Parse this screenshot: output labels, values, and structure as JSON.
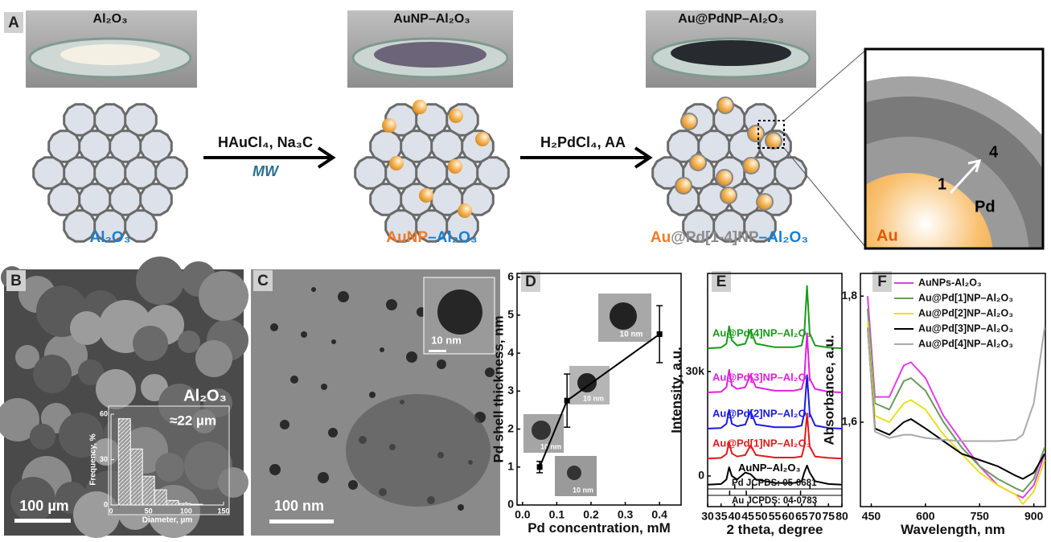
{
  "panel_labels": [
    "A",
    "B",
    "C",
    "D",
    "E",
    "F"
  ],
  "diagram": {
    "photo_titles": [
      "Al₂O₃",
      "AuNP–Al₂O₃",
      "Au@PdNP–Al₂O₃"
    ],
    "support_label": "Al₂O₃",
    "aunp_label": [
      "AuNP",
      "–Al₂O₃"
    ],
    "aupd_label": [
      "Au",
      "@Pd[1-4]NP",
      "–Al₂O₃"
    ],
    "step1": "HAuCl₄, Na₃C",
    "step1_condition": "MW",
    "step2": "H₂PdCl₄, AA",
    "inset": {
      "outer": "4",
      "inner": "1",
      "shell": "Pd",
      "core": "Au"
    }
  },
  "micrographs": {
    "sem_label": "Al₂O₃",
    "sem_size": "≈22 µm",
    "sem_scale": "100 µm",
    "tem_scale": "100 nm",
    "tem_inset_scale": "10 nm",
    "d_inset_scales": [
      "10 nm",
      "10 nm",
      "10 nm",
      "10 nm"
    ]
  },
  "chart_data": [
    {
      "type": "histogram",
      "bins": [
        10,
        26,
        42,
        58,
        74,
        90,
        106,
        122
      ],
      "values": [
        57,
        37,
        19,
        10,
        3,
        1,
        0.5
      ],
      "xlim": [
        0,
        150
      ],
      "ylim": [
        0,
        60
      ],
      "xticks": [
        0,
        50,
        100,
        150
      ],
      "yticks": [
        0,
        30,
        60
      ],
      "xlabel": "Diameter, µm",
      "ylabel": "Frequency, %",
      "color": "#ffffff"
    },
    {
      "type": "scatter",
      "x": [
        0.05,
        0.13,
        0.4
      ],
      "values": [
        1.0,
        2.75,
        4.5
      ],
      "errors": [
        0.15,
        0.7,
        0.75
      ],
      "xlim": [
        -0.016,
        0.463
      ],
      "ylim": [
        0,
        6.1
      ],
      "xticks": [
        {
          "value": 0,
          "label": "0.0"
        },
        0.1,
        0.2,
        0.3,
        0.4
      ],
      "yticks": [
        0,
        1,
        2,
        3,
        4,
        5,
        6
      ],
      "xlabel": "Pd concentration, mM",
      "ylabel": "Pd shell thickness, nm",
      "color": "#000000"
    },
    {
      "type": "line",
      "x": [
        30,
        35,
        37,
        38,
        39,
        41,
        44,
        46,
        48,
        55,
        62,
        65,
        66,
        67,
        68,
        70,
        75,
        80
      ],
      "series": [
        {
          "name": "Au@Pd[4]NP–Al₂O₃",
          "color": "#1a9a1a",
          "values": [
            36700,
            36900,
            38000,
            43000,
            39000,
            37500,
            38000,
            41900,
            38000,
            37000,
            37000,
            37500,
            41000,
            54600,
            41000,
            37500,
            36900,
            36700
          ]
        },
        {
          "name": "Au@Pd[3]NP–Al₂O₃",
          "color": "#e020e0",
          "values": [
            24000,
            24200,
            25500,
            30500,
            26000,
            25000,
            25500,
            29000,
            25500,
            24500,
            24500,
            25000,
            28000,
            41000,
            28000,
            25000,
            24200,
            24000
          ]
        },
        {
          "name": "Au@Pd[2]NP–Al₂O₃",
          "color": "#1a1ae0",
          "values": [
            13600,
            13800,
            15000,
            19000,
            15000,
            14300,
            14800,
            18500,
            14800,
            14000,
            14000,
            14500,
            18000,
            29000,
            18000,
            14500,
            13800,
            13600
          ]
        },
        {
          "name": "Au@Pd[1]NP–Al₂O₃",
          "color": "#e01a1a",
          "values": [
            5000,
            5200,
            6300,
            9700,
            6500,
            5600,
            6000,
            8800,
            6000,
            5300,
            5300,
            5600,
            8500,
            18000,
            8500,
            5600,
            5200,
            5000
          ]
        },
        {
          "name": "AuNP–Al₂O₃",
          "color": "#000000",
          "values": [
            -2500,
            -2300,
            -1000,
            2500,
            0,
            -1000,
            1000,
            500,
            -1000,
            -2000,
            -2000,
            -1500,
            1000,
            3000,
            1000,
            -1500,
            -2300,
            -2500
          ]
        }
      ],
      "reference_lines": [
        {
          "label": "Pd JCPDS: 05-0681",
          "peaks": [
            40.1,
            46.7,
            68.1
          ]
        },
        {
          "label": "Au JCPDS: 04-0783",
          "peaks": [
            38.2,
            44.4,
            64.6
          ]
        }
      ],
      "xlim": [
        30,
        80
      ],
      "ylim": [
        -8800,
        58200
      ],
      "xticks": [
        30,
        35,
        40,
        45,
        50,
        55,
        60,
        65,
        70,
        75,
        80
      ],
      "yticks": [
        0,
        {
          "value": 30000,
          "label": "30k"
        }
      ],
      "xlabel": "2 theta, degree",
      "ylabel": "Intensity, a.u."
    },
    {
      "type": "line",
      "x": [
        440,
        460,
        500,
        540,
        560,
        600,
        650,
        700,
        750,
        800,
        850,
        870,
        900,
        930
      ],
      "series": [
        {
          "name": "AuNPs-Al₂O₃",
          "color": "#e040e8",
          "values": [
            1.8,
            1.64,
            1.64,
            1.69,
            1.695,
            1.67,
            1.61,
            1.57,
            1.53,
            1.5,
            1.485,
            1.48,
            1.5,
            1.55
          ]
        },
        {
          "name": "Au@Pd[1]NP–Al₂O₃",
          "color": "#6b9a5b",
          "values": [
            1.78,
            1.63,
            1.62,
            1.665,
            1.67,
            1.65,
            1.6,
            1.56,
            1.53,
            1.51,
            1.495,
            1.49,
            1.51,
            1.56
          ]
        },
        {
          "name": "Au@Pd[2]NP–Al₂O₃",
          "color": "#e8e020",
          "values": [
            1.76,
            1.61,
            1.6,
            1.63,
            1.635,
            1.62,
            1.58,
            1.55,
            1.52,
            1.5,
            1.485,
            1.47,
            1.49,
            1.54
          ]
        },
        {
          "name": "Au@Pd[3]NP–Al₂O₃",
          "color": "#000000",
          "values": [
            1.75,
            1.59,
            1.58,
            1.6,
            1.605,
            1.59,
            1.57,
            1.55,
            1.54,
            1.53,
            1.515,
            1.51,
            1.52,
            1.55
          ]
        },
        {
          "name": "Au@Pd[4]NP–Al₂O₃",
          "color": "#aaaaaa",
          "values": [
            1.75,
            1.585,
            1.575,
            1.58,
            1.58,
            1.575,
            1.572,
            1.57,
            1.57,
            1.57,
            1.572,
            1.58,
            1.63,
            1.75
          ]
        }
      ],
      "xlim": [
        420,
        932
      ],
      "ylim": [
        1.466,
        1.836
      ],
      "xticks": [
        450,
        600,
        750,
        900
      ],
      "yticks": [
        {
          "value": 1.6,
          "label": "1,6"
        },
        {
          "value": 1.8,
          "label": "1,8"
        }
      ],
      "xlabel": "Wavelength, nm",
      "ylabel": "Absorbance, a.u.",
      "legend": "upper right"
    }
  ]
}
